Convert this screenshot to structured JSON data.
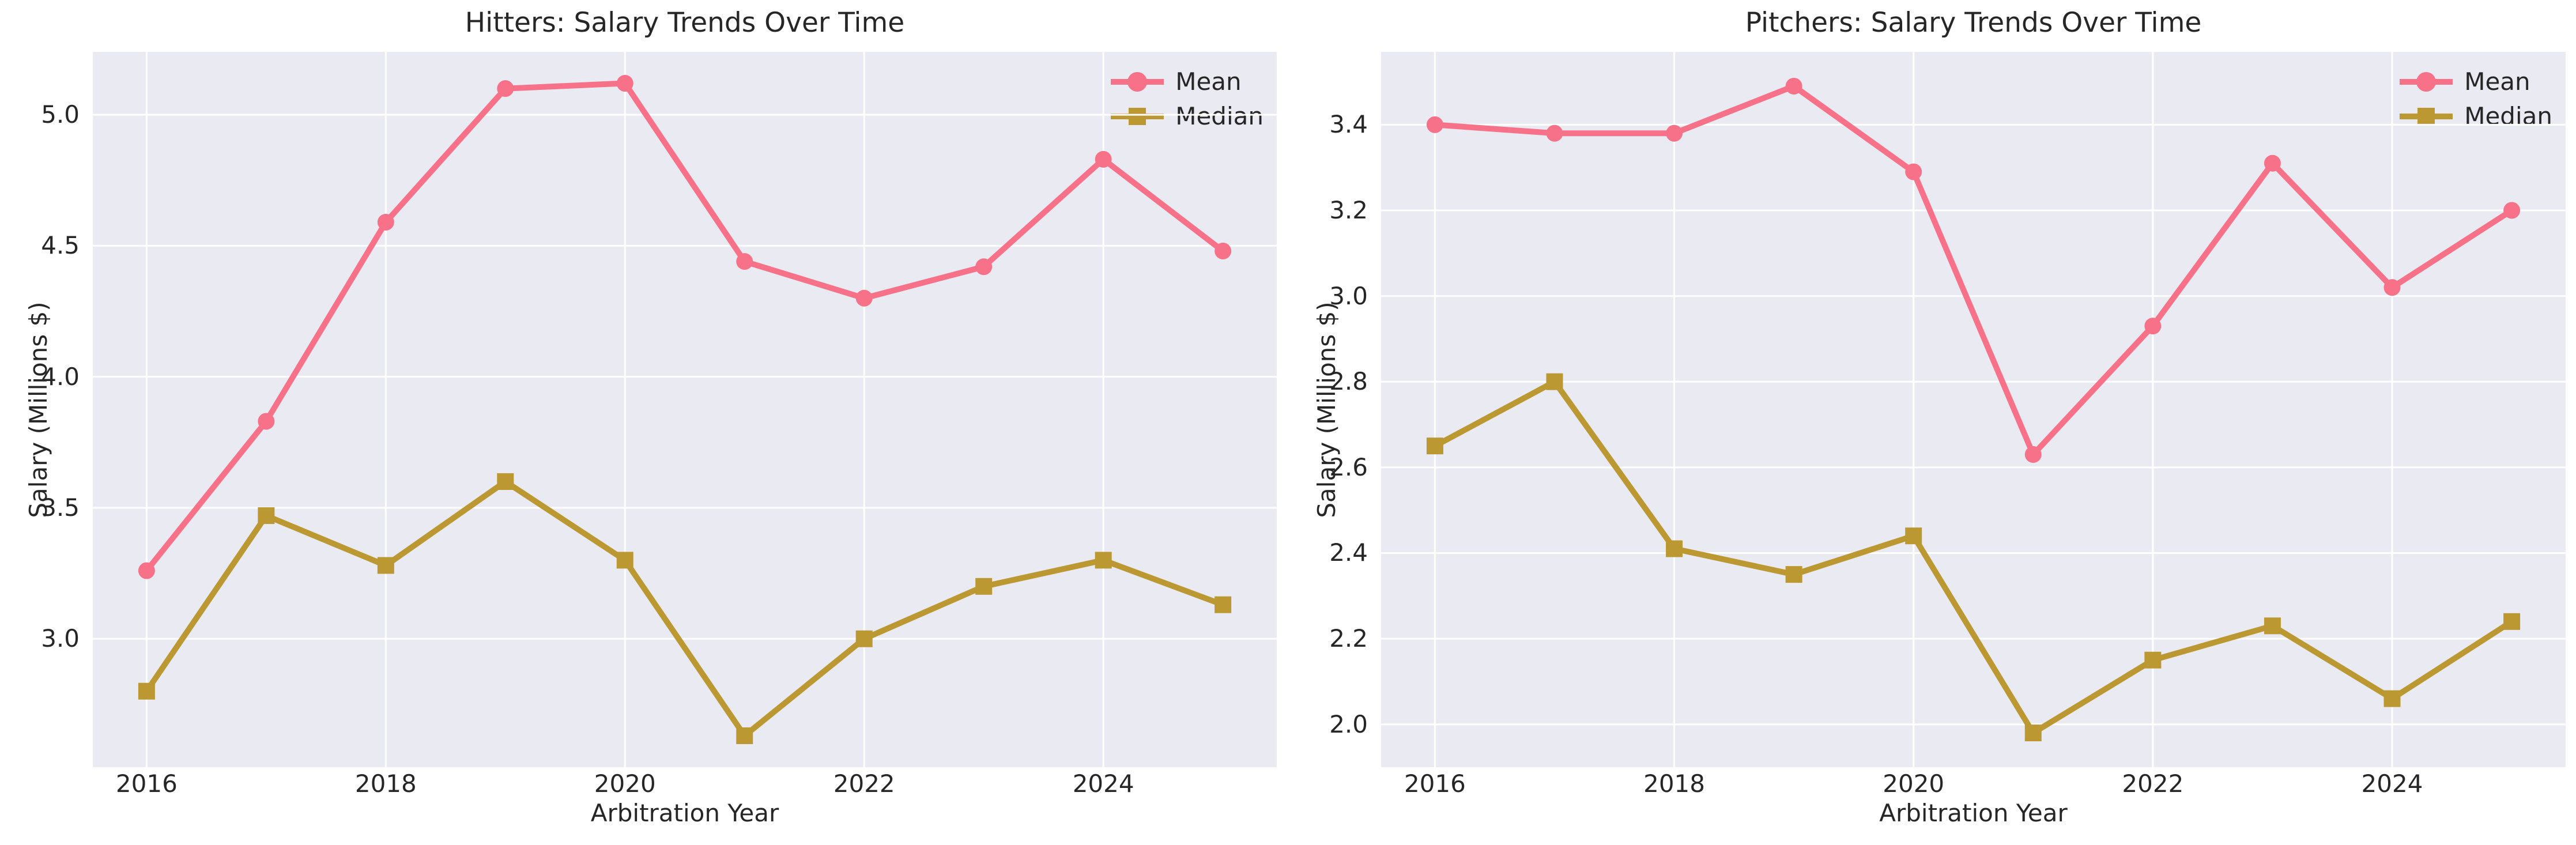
{
  "style": {
    "figure_background": "#ffffff",
    "axes_background": "#eaeaf2",
    "grid_color": "#ffffff",
    "text_color": "#262626",
    "mean_color": "#f77189",
    "median_color": "#bb9832"
  },
  "chart_data": [
    {
      "type": "line",
      "title": "Hitters: Salary Trends Over Time",
      "xlabel": "Arbitration Year",
      "ylabel": "Salary (Millions $)",
      "x": [
        2016,
        2017,
        2018,
        2019,
        2020,
        2021,
        2022,
        2023,
        2024,
        2025
      ],
      "series": [
        {
          "name": "Mean",
          "marker": "circle",
          "color": "#f77189",
          "values": [
            3.26,
            3.83,
            4.59,
            5.1,
            5.12,
            4.44,
            4.3,
            4.42,
            4.83,
            4.48
          ]
        },
        {
          "name": "Median",
          "marker": "square",
          "color": "#bb9832",
          "values": [
            2.8,
            3.47,
            3.28,
            3.6,
            3.3,
            2.63,
            3.0,
            3.2,
            3.3,
            3.13
          ]
        }
      ],
      "xlim": [
        2015.55,
        2025.45
      ],
      "ylim": [
        2.51,
        5.24
      ],
      "xticks": [
        2016,
        2018,
        2020,
        2022,
        2024
      ],
      "xtick_labels": [
        "2016",
        "2018",
        "2020",
        "2022",
        "2024"
      ],
      "yticks": [
        3.0,
        3.5,
        4.0,
        4.5,
        5.0
      ],
      "ytick_labels": [
        "3.0",
        "3.5",
        "4.0",
        "4.5",
        "5.0"
      ],
      "grid": true,
      "legend_position": "upper right"
    },
    {
      "type": "line",
      "title": "Pitchers: Salary Trends Over Time",
      "xlabel": "Arbitration Year",
      "ylabel": "Salary (Millions $)",
      "x": [
        2016,
        2017,
        2018,
        2019,
        2020,
        2021,
        2022,
        2023,
        2024,
        2025
      ],
      "series": [
        {
          "name": "Mean",
          "marker": "circle",
          "color": "#f77189",
          "values": [
            3.4,
            3.38,
            3.38,
            3.49,
            3.29,
            2.63,
            2.93,
            3.31,
            3.02,
            3.2
          ]
        },
        {
          "name": "Median",
          "marker": "square",
          "color": "#bb9832",
          "values": [
            2.65,
            2.8,
            2.41,
            2.35,
            2.44,
            1.98,
            2.15,
            2.23,
            2.06,
            2.24
          ]
        }
      ],
      "xlim": [
        2015.55,
        2025.45
      ],
      "ylim": [
        1.9,
        3.57
      ],
      "xticks": [
        2016,
        2018,
        2020,
        2022,
        2024
      ],
      "xtick_labels": [
        "2016",
        "2018",
        "2020",
        "2022",
        "2024"
      ],
      "yticks": [
        2.0,
        2.2,
        2.4,
        2.6,
        2.8,
        3.0,
        3.2,
        3.4
      ],
      "ytick_labels": [
        "2.0",
        "2.2",
        "2.4",
        "2.6",
        "2.8",
        "3.0",
        "3.2",
        "3.4"
      ],
      "grid": true,
      "legend_position": "upper right"
    }
  ]
}
